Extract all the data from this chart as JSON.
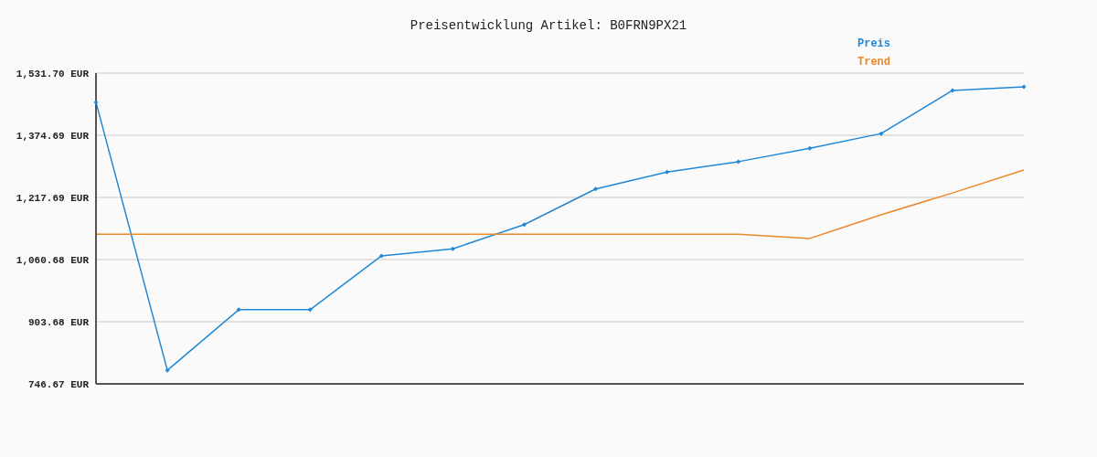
{
  "chart_data": {
    "type": "line",
    "title": "Preisentwicklung Artikel: B0FRN9PX21",
    "categories": [
      null,
      null,
      null,
      null,
      null,
      null,
      null,
      null,
      null,
      null,
      null,
      null,
      null,
      null
    ],
    "series": [
      {
        "name": "Preis",
        "color": "#1f88d6",
        "values": [
          1458,
          781,
          934,
          934,
          1070,
          1088,
          1149,
          1239,
          1282,
          1308,
          1342,
          1379,
          1488,
          1497
        ]
      },
      {
        "name": "Trend",
        "color": "#e8892a",
        "marker": "none",
        "values": [
          1125,
          1125,
          1125,
          1125,
          1125,
          1125,
          1125,
          1125,
          1125,
          1125,
          1114,
          1174,
          1229,
          1287
        ]
      }
    ],
    "ylim": [
      746.67,
      1531.7
    ],
    "yticks": [
      {
        "value": 746.67,
        "label": "746.67 EUR"
      },
      {
        "value": 903.68,
        "label": "903.68 EUR"
      },
      {
        "value": 1060.68,
        "label": "1,060.68 EUR"
      },
      {
        "value": 1217.69,
        "label": "1,217.69 EUR"
      },
      {
        "value": 1374.69,
        "label": "1,374.69 EUR"
      },
      {
        "value": 1531.7,
        "label": "1,531.70 EUR"
      }
    ],
    "grid": "y",
    "legend": "top right",
    "marker": "diamond",
    "line_style": "solid"
  }
}
